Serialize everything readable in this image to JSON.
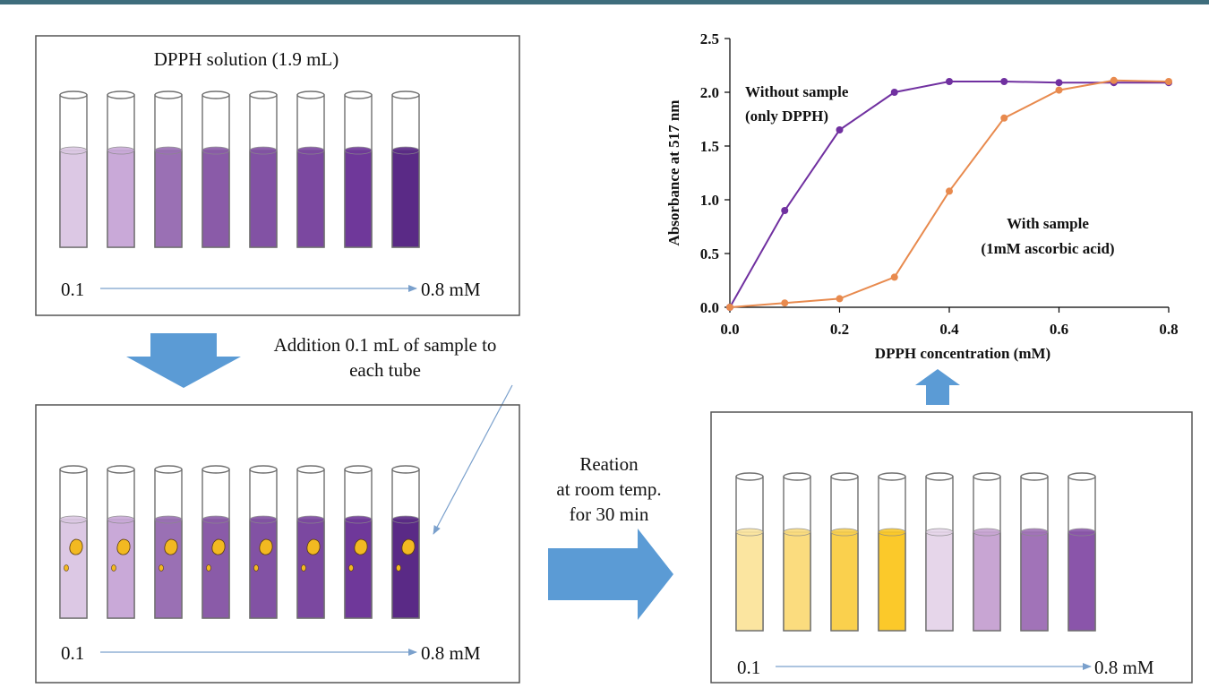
{
  "colors": {
    "accent_arrow": "#5b9bd5",
    "thin_arrow": "#7aa0cc",
    "panel_border": "#555555",
    "series_without": "#7030a0",
    "series_with": "#e88a4e"
  },
  "panel_top": {
    "title": "DPPH solution (1.9 mL)",
    "scale_start": "0.1",
    "scale_end": "0.8 mM",
    "tube_colors": [
      "#dcc8e4",
      "#c9a9d8",
      "#9a70b4",
      "#8a5ba8",
      "#8252a4",
      "#7b48a0",
      "#6f389a",
      "#5a2a86"
    ]
  },
  "addition_note": {
    "line1": "Addition 0.1 mL of sample to",
    "line2": "each tube"
  },
  "panel_bottom_left": {
    "scale_start": "0.1",
    "scale_end": "0.8 mM",
    "tube_colors": [
      "#dcc8e4",
      "#c9a9d8",
      "#9a70b4",
      "#8a5ba8",
      "#8252a4",
      "#7b48a0",
      "#6f389a",
      "#5a2a86"
    ],
    "drop_color": "#f2b921"
  },
  "reaction_note": {
    "line1": "Reation",
    "line2": "at room temp.",
    "line3": "for 30 min"
  },
  "panel_bottom_right": {
    "scale_start": "0.1",
    "scale_end": "0.8 mM",
    "tube_colors": [
      "#fbe5a0",
      "#fbdc7e",
      "#fad04d",
      "#fbc92a",
      "#e6d6ea",
      "#c8a5d3",
      "#a173b8",
      "#8a55aa"
    ]
  },
  "chart_data": {
    "type": "line",
    "xlabel": "DPPH concentration  (mM)",
    "ylabel": "Absorbance  at 517 nm",
    "xlim": [
      0,
      0.8
    ],
    "ylim": [
      0,
      2.5
    ],
    "x_ticks": [
      "0.0",
      "0.2",
      "0.4",
      "0.6",
      "0.8"
    ],
    "y_ticks": [
      "0.0",
      "0.5",
      "1.0",
      "1.5",
      "2.0",
      "2.5"
    ],
    "x": [
      0,
      0.1,
      0.2,
      0.3,
      0.4,
      0.5,
      0.6,
      0.7,
      0.8
    ],
    "series": [
      {
        "values": [
          0,
          0.9,
          1.65,
          2.0,
          2.1,
          2.1,
          2.09,
          2.09,
          2.09
        ]
      },
      {
        "values": [
          0,
          0.04,
          0.08,
          0.28,
          1.08,
          1.76,
          2.02,
          2.11,
          2.1
        ]
      }
    ],
    "annotations": [
      {
        "line1": "Without  sample",
        "line2": "(only DPPH)"
      },
      {
        "line1": "With  sample",
        "line2": "(1mM ascorbic acid)"
      }
    ],
    "grid": false
  }
}
